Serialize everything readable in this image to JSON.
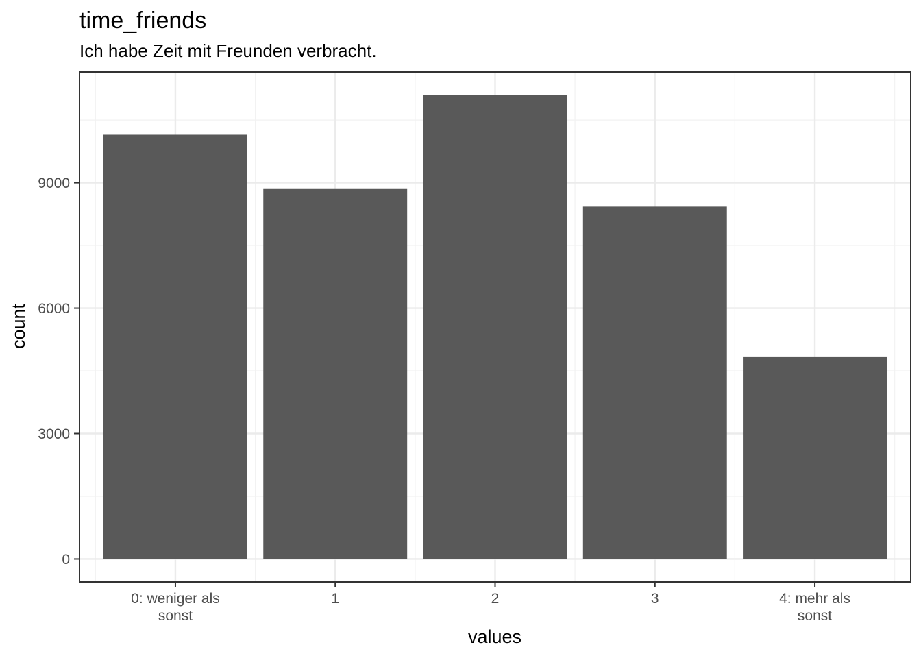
{
  "chart_data": {
    "type": "bar",
    "title": "time_friends",
    "subtitle": "Ich habe Zeit mit Freunden verbracht.",
    "xlabel": "values",
    "ylabel": "count",
    "categories": [
      [
        "0: weniger als",
        "sonst"
      ],
      [
        "1"
      ],
      [
        "2"
      ],
      [
        "3"
      ],
      [
        "4: mehr als",
        "sonst"
      ]
    ],
    "values": [
      10150,
      8850,
      11100,
      8430,
      4830
    ],
    "yticks": [
      0,
      3000,
      6000,
      9000
    ],
    "ylim": [
      -550,
      11650
    ],
    "grid": true,
    "legend": "none",
    "colors": {
      "bar": "#595959",
      "panel_border": "#333333",
      "grid_major": "#ebebeb",
      "grid_minor": "#f2f2f2",
      "tick": "#333333",
      "tick_label": "#4d4d4d"
    }
  }
}
